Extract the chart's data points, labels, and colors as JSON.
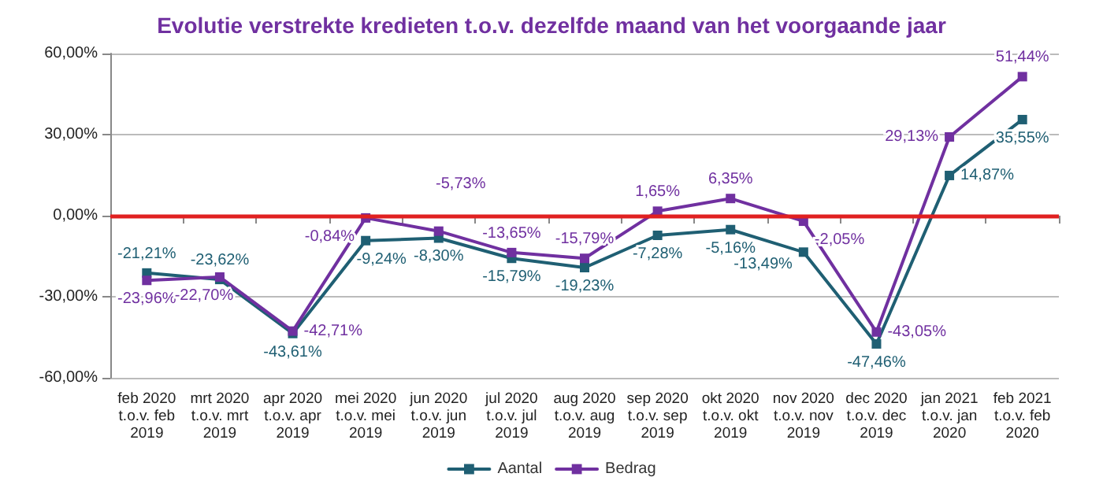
{
  "chart_data": {
    "type": "line",
    "title": "Evolutie verstrekte kredieten t.o.v. dezelfde maand van het voorgaande jaar",
    "categories": [
      "feb 2020 t.o.v. feb 2019",
      "mrt 2020 t.o.v. mrt 2019",
      "apr 2020 t.o.v. apr 2019",
      "mei 2020 t.o.v. mei 2019",
      "jun 2020 t.o.v. jun 2019",
      "jul 2020 t.o.v. jul 2019",
      "aug 2020 t.o.v. aug 2019",
      "sep 2020 t.o.v. sep 2019",
      "okt 2020 t.o.v. okt 2019",
      "nov 2020 t.o.v. nov 2019",
      "dec 2020 t.o.v. dec 2019",
      "jan 2021 t.o.v. jan 2020",
      "feb 2021 t.o.v. feb 2020"
    ],
    "series": [
      {
        "name": "Aantal",
        "color": "#1f5f73",
        "values": [
          -21.21,
          -23.62,
          -43.61,
          -9.24,
          -8.3,
          -15.79,
          -19.23,
          -7.28,
          -5.16,
          -13.49,
          -47.46,
          14.87,
          35.55
        ],
        "value_labels": [
          "-21,21%",
          "-23,62%",
          "-43,61%",
          "-9,24%",
          "-8,30%",
          "-15,79%",
          "-19,23%",
          "-7,28%",
          "-5,16%",
          "-13,49%",
          "-47,46%",
          "14,87%",
          "35,55%"
        ]
      },
      {
        "name": "Bedrag",
        "color": "#7030a0",
        "values": [
          -23.96,
          -22.7,
          -42.71,
          -0.84,
          -5.73,
          -13.65,
          -15.79,
          1.65,
          6.35,
          -2.05,
          -43.05,
          29.13,
          51.44
        ],
        "value_labels": [
          "-23,96%",
          "-22,70%",
          "-42,71%",
          "-0,84%",
          "-5,73%",
          "-13,65%",
          "-15,79%",
          "1,65%",
          "6,35%",
          "-2,05%",
          "-43,05%",
          "29,13%",
          "51,44%"
        ]
      }
    ],
    "ylim": [
      -60,
      60
    ],
    "yticks": [
      {
        "value": -60,
        "label": "-60,00%"
      },
      {
        "value": -30,
        "label": "-30,00%"
      },
      {
        "value": 0,
        "label": "0,00%"
      },
      {
        "value": 30,
        "label": "30,00%"
      },
      {
        "value": 60,
        "label": "60,00%"
      }
    ],
    "ref_lines": [
      {
        "axis": "y",
        "value": 0,
        "label": null,
        "color": "#e02020",
        "line_style": "solid"
      }
    ],
    "grid": "y",
    "legend": "bottom",
    "marker": "square",
    "line_style": "solid"
  }
}
